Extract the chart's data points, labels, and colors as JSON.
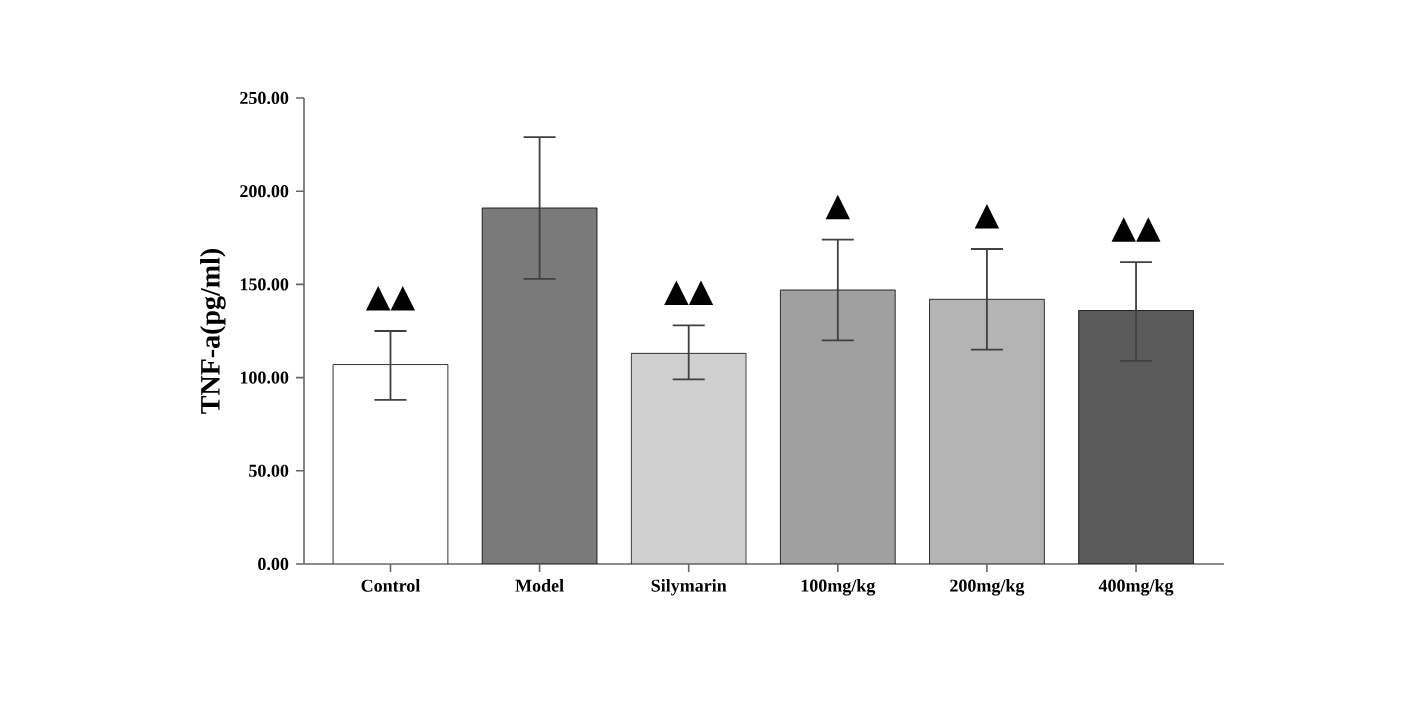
{
  "chart_data": {
    "type": "bar",
    "ylabel": "TNF-a(pg/ml)",
    "categories": [
      "Control",
      "Model",
      "Silymarin",
      "100mg/kg",
      "200mg/kg",
      "400mg/kg"
    ],
    "values": [
      107,
      191,
      113,
      147,
      142,
      136
    ],
    "errors": [
      [
        88,
        125
      ],
      [
        153,
        229
      ],
      [
        99,
        128
      ],
      [
        120,
        174
      ],
      [
        115,
        169
      ],
      [
        109,
        162
      ]
    ],
    "colors": [
      "#ffffff",
      "#7a7a7a",
      "#cfcfcf",
      "#a0a0a0",
      "#b4b4b4",
      "#5a5a5a"
    ],
    "ylim": [
      0,
      250
    ],
    "yticks": [
      {
        "value": 0,
        "label": "0.00"
      },
      {
        "value": 50,
        "label": "50.00"
      },
      {
        "value": 100,
        "label": "100.00"
      },
      {
        "value": 150,
        "label": "150.00"
      },
      {
        "value": 200,
        "label": "200.00"
      },
      {
        "value": 250,
        "label": "250.00"
      }
    ],
    "annotations": [
      "▲▲",
      "▲▲",
      "▲",
      "▲",
      "▲▲"
    ]
  }
}
